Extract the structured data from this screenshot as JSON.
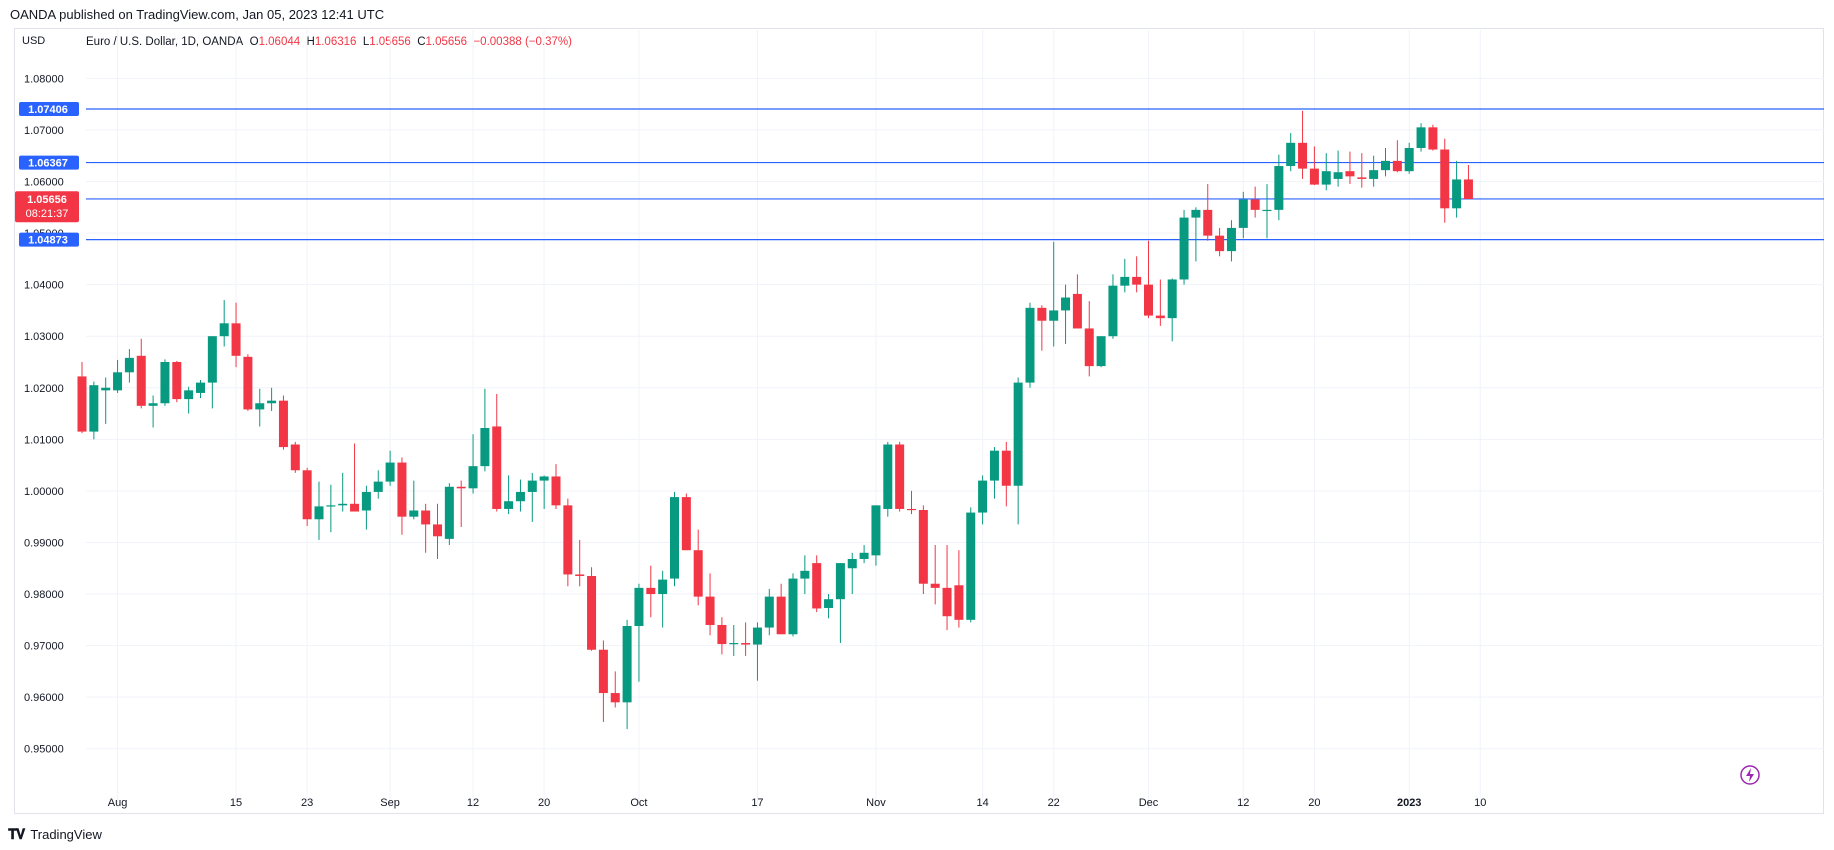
{
  "header": {
    "publisher_line": "OANDA published on TradingView.com, Jan 05, 2023 12:41 UTC"
  },
  "legend": {
    "currency": "USD",
    "symbol": "Euro / U.S. Dollar, 1D, OANDA",
    "o_label": "O",
    "o_value": "1.06044",
    "h_label": "H",
    "h_value": "1.06316",
    "l_label": "L",
    "l_value": "1.05656",
    "c_label": "C",
    "c_value": "1.05656",
    "change": "−0.00388 (−0.37%)"
  },
  "footer": {
    "brand": "TradingView"
  },
  "colors": {
    "up": "#089981",
    "down": "#f23645",
    "hline": "#2962ff",
    "grid": "#f0f3fa"
  },
  "chart_data": {
    "type": "candlestick",
    "symbol": "EURUSD",
    "interval": "1D",
    "ylim": [
      0.942,
      1.0855
    ],
    "y_ticks": [
      "0.95000",
      "0.96000",
      "0.97000",
      "0.98000",
      "0.99000",
      "1.00000",
      "1.01000",
      "1.02000",
      "1.03000",
      "1.04000",
      "1.05000",
      "1.06000",
      "1.07000",
      "1.08000"
    ],
    "x_ticks": [
      {
        "label": "Aug",
        "index": 3
      },
      {
        "label": "15",
        "index": 13
      },
      {
        "label": "23",
        "index": 19
      },
      {
        "label": "Sep",
        "index": 26
      },
      {
        "label": "12",
        "index": 33
      },
      {
        "label": "20",
        "index": 39
      },
      {
        "label": "Oct",
        "index": 47
      },
      {
        "label": "17",
        "index": 57
      },
      {
        "label": "Nov",
        "index": 67
      },
      {
        "label": "14",
        "index": 76
      },
      {
        "label": "22",
        "index": 82
      },
      {
        "label": "Dec",
        "index": 90
      },
      {
        "label": "12",
        "index": 98
      },
      {
        "label": "20",
        "index": 104
      },
      {
        "label": "2023",
        "index": 112
      },
      {
        "label": "10",
        "index": 118
      }
    ],
    "horizontal_lines": [
      "1.07406",
      "1.06367",
      "1.05662",
      "1.04873"
    ],
    "last_price": {
      "value": "1.05656",
      "countdown": "08:21:37"
    },
    "candles": [
      [
        1.0222,
        1.025,
        1.0112,
        1.0115
      ],
      [
        1.0115,
        1.0212,
        1.01,
        1.0205
      ],
      [
        1.0195,
        1.022,
        1.013,
        1.02
      ],
      [
        1.0195,
        1.0254,
        1.019,
        1.023
      ],
      [
        1.023,
        1.0275,
        1.021,
        1.0258
      ],
      [
        1.0262,
        1.0295,
        1.016,
        1.0165
      ],
      [
        1.0165,
        1.0185,
        1.0123,
        1.017
      ],
      [
        1.017,
        1.0255,
        1.0165,
        1.025
      ],
      [
        1.025,
        1.0252,
        1.0172,
        1.0178
      ],
      [
        1.0178,
        1.0202,
        1.015,
        1.0195
      ],
      [
        1.019,
        1.0215,
        1.018,
        1.021
      ],
      [
        1.021,
        1.03,
        1.016,
        1.03
      ],
      [
        1.03,
        1.037,
        1.028,
        1.0325
      ],
      [
        1.0325,
        1.0365,
        1.024,
        1.0262
      ],
      [
        1.026,
        1.0265,
        1.0155,
        1.0158
      ],
      [
        1.0158,
        1.0198,
        1.0125,
        1.017
      ],
      [
        1.017,
        1.02,
        1.0155,
        1.0175
      ],
      [
        1.0175,
        1.0185,
        1.008,
        1.0085
      ],
      [
        1.009,
        1.0095,
        1.0035,
        1.004
      ],
      [
        1.004,
        1.0045,
        0.9932,
        0.9945
      ],
      [
        0.9945,
        1.0018,
        0.9905,
        0.997
      ],
      [
        0.997,
        1.0012,
        0.992,
        0.9972
      ],
      [
        0.9972,
        1.0035,
        0.996,
        0.9975
      ],
      [
        0.9975,
        1.0092,
        0.9963,
        0.996
      ],
      [
        0.9962,
        1.001,
        0.9925,
        0.9998
      ],
      [
        0.9998,
        1.004,
        0.9985,
        1.0018
      ],
      [
        1.0018,
        1.0078,
        1.001,
        1.0055
      ],
      [
        1.0055,
        1.0065,
        0.9915,
        0.995
      ],
      [
        0.995,
        1.002,
        0.9945,
        0.9962
      ],
      [
        0.9962,
        0.9975,
        0.988,
        0.9935
      ],
      [
        0.9935,
        0.9975,
        0.9868,
        0.9912
      ],
      [
        0.9907,
        1.0015,
        0.9895,
        1.0008
      ],
      [
        1.0008,
        1.002,
        0.993,
        1.0005
      ],
      [
        1.0005,
        1.011,
        0.9995,
        1.0048
      ],
      [
        1.0048,
        1.0198,
        1.0038,
        1.0122
      ],
      [
        1.0125,
        1.0188,
        0.996,
        0.9965
      ],
      [
        0.9965,
        1.003,
        0.9955,
        0.998
      ],
      [
        0.998,
        1.0022,
        0.996,
        0.9998
      ],
      [
        0.9998,
        1.0035,
        0.994,
        1.002
      ],
      [
        1.002,
        1.003,
        0.9965,
        1.0028
      ],
      [
        1.0028,
        1.0052,
        0.9965,
        0.9972
      ],
      [
        0.9972,
        0.9985,
        0.9815,
        0.9838
      ],
      [
        0.9838,
        0.9905,
        0.9815,
        0.9835
      ],
      [
        0.9835,
        0.9852,
        0.969,
        0.9692
      ],
      [
        0.9692,
        0.971,
        0.9552,
        0.9608
      ],
      [
        0.9608,
        0.965,
        0.958,
        0.959
      ],
      [
        0.959,
        0.975,
        0.9538,
        0.9738
      ],
      [
        0.9738,
        0.982,
        0.963,
        0.9812
      ],
      [
        0.9812,
        0.9855,
        0.9755,
        0.98
      ],
      [
        0.98,
        0.9845,
        0.9735,
        0.9828
      ],
      [
        0.983,
        0.9998,
        0.9815,
        0.9988
      ],
      [
        0.9988,
        0.9995,
        0.9885,
        0.9885
      ],
      [
        0.9885,
        0.9925,
        0.9778,
        0.9795
      ],
      [
        0.9795,
        0.984,
        0.972,
        0.974
      ],
      [
        0.974,
        0.9755,
        0.9683,
        0.9703
      ],
      [
        0.9703,
        0.974,
        0.968,
        0.9705
      ],
      [
        0.9705,
        0.9745,
        0.968,
        0.9702
      ],
      [
        0.9702,
        0.9745,
        0.9632,
        0.9735
      ],
      [
        0.9735,
        0.981,
        0.972,
        0.9795
      ],
      [
        0.9795,
        0.982,
        0.9722,
        0.9722
      ],
      [
        0.9722,
        0.984,
        0.9718,
        0.983
      ],
      [
        0.983,
        0.9875,
        0.98,
        0.9845
      ],
      [
        0.986,
        0.9875,
        0.9765,
        0.9772
      ],
      [
        0.9773,
        0.98,
        0.9753,
        0.979
      ],
      [
        0.979,
        0.986,
        0.9705,
        0.986
      ],
      [
        0.985,
        0.988,
        0.98,
        0.9868
      ],
      [
        0.9868,
        0.9895,
        0.986,
        0.988
      ],
      [
        0.9875,
        0.9972,
        0.9855,
        0.9972
      ],
      [
        0.9965,
        1.0095,
        0.995,
        1.009
      ],
      [
        1.009,
        1.0095,
        0.996,
        0.9965
      ],
      [
        0.9965,
        1.0,
        0.9955,
        0.9963
      ],
      [
        0.9963,
        0.9972,
        0.98,
        0.982
      ],
      [
        0.982,
        0.9895,
        0.978,
        0.9812
      ],
      [
        0.9812,
        0.9895,
        0.973,
        0.9757
      ],
      [
        0.9817,
        0.9885,
        0.9735,
        0.975
      ],
      [
        0.975,
        0.9968,
        0.9745,
        0.9958
      ],
      [
        0.9958,
        1.003,
        0.9935,
        1.002
      ],
      [
        1.002,
        1.0085,
        0.9985,
        1.0078
      ],
      [
        1.0078,
        1.0095,
        0.997,
        1.001
      ],
      [
        1.001,
        1.022,
        0.9935,
        1.021
      ],
      [
        1.021,
        1.0365,
        1.02,
        1.0355
      ],
      [
        1.0355,
        1.036,
        1.0272,
        1.033
      ],
      [
        1.033,
        1.0483,
        1.028,
        1.035
      ],
      [
        1.035,
        1.04,
        1.0285,
        1.0375
      ],
      [
        1.0382,
        1.042,
        1.032,
        1.0315
      ],
      [
        1.0315,
        1.0368,
        1.0222,
        1.0242
      ],
      [
        1.0242,
        1.03,
        1.024,
        1.03
      ],
      [
        1.03,
        1.042,
        1.0295,
        1.0398
      ],
      [
        1.0398,
        1.045,
        1.0385,
        1.0415
      ],
      [
        1.0415,
        1.0455,
        1.0385,
        1.04
      ],
      [
        1.04,
        1.0485,
        1.0335,
        1.034
      ],
      [
        1.034,
        1.041,
        1.032,
        1.0335
      ],
      [
        1.0335,
        1.0412,
        1.029,
        1.041
      ],
      [
        1.041,
        1.0545,
        1.04,
        1.053
      ],
      [
        1.053,
        1.055,
        1.0445,
        1.0545
      ],
      [
        1.0545,
        1.0595,
        1.0485,
        1.0495
      ],
      [
        1.0495,
        1.051,
        1.0455,
        1.0465
      ],
      [
        1.0465,
        1.0525,
        1.0445,
        1.051
      ],
      [
        1.051,
        1.058,
        1.049,
        1.0565
      ],
      [
        1.0565,
        1.059,
        1.053,
        1.0545
      ],
      [
        1.0545,
        1.0595,
        1.049,
        1.0545
      ],
      [
        1.0545,
        1.0652,
        1.0525,
        1.063
      ],
      [
        1.063,
        1.0694,
        1.062,
        1.0675
      ],
      [
        1.0675,
        1.0737,
        1.0605,
        1.0625
      ],
      [
        1.0625,
        1.0668,
        1.0593,
        1.0594
      ],
      [
        1.0594,
        1.0655,
        1.0583,
        1.062
      ],
      [
        1.0605,
        1.066,
        1.059,
        1.0618
      ],
      [
        1.062,
        1.0658,
        1.0595,
        1.061
      ],
      [
        1.0608,
        1.0655,
        1.0588,
        1.0605
      ],
      [
        1.0605,
        1.065,
        1.059,
        1.0622
      ],
      [
        1.0622,
        1.0665,
        1.061,
        1.064
      ],
      [
        1.064,
        1.068,
        1.0618,
        1.062
      ],
      [
        1.062,
        1.0675,
        1.0615,
        1.0665
      ],
      [
        1.0665,
        1.0713,
        1.0658,
        1.0705
      ],
      [
        1.0705,
        1.071,
        1.066,
        1.0662
      ],
      [
        1.0662,
        1.0683,
        1.052,
        1.0548
      ],
      [
        1.0548,
        1.064,
        1.053,
        1.0604
      ],
      [
        1.0604,
        1.0632,
        1.0566,
        1.0566
      ]
    ]
  }
}
